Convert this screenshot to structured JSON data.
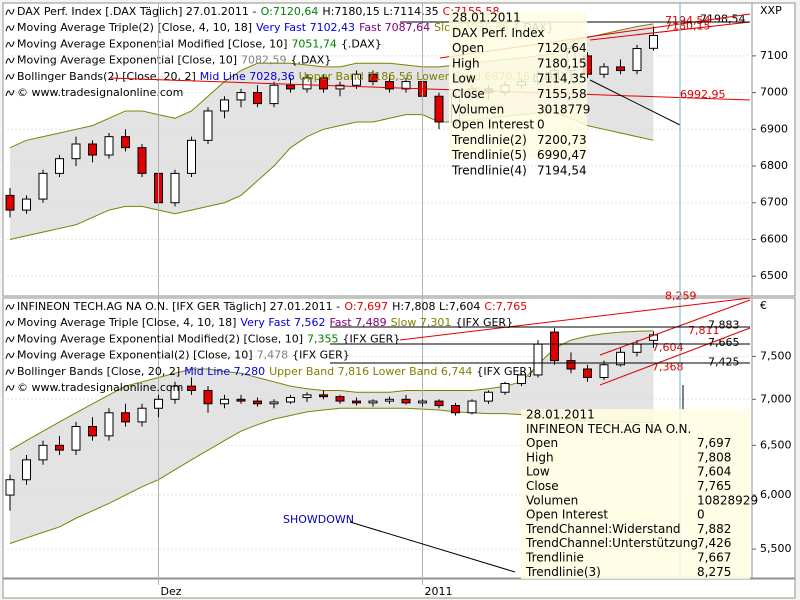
{
  "chart_data": [
    {
      "type": "candlestick",
      "legend": [
        [
          {
            "text": "DAX Perf. Index [.DAX  Täglich] 27.01.2011 -",
            "color": "#000000"
          },
          {
            "text": "O:7120,64",
            "color": "#008000"
          },
          {
            "text": "H:7180,15 L:7114,35",
            "color": "#000000"
          },
          {
            "text": "C:7155,58",
            "color": "#e00000"
          }
        ],
        [
          {
            "text": "Moving Average Triple(2) [Close, 4, 10, 18]",
            "color": "#000000"
          },
          {
            "text": "Very Fast 7102,43",
            "color": "#0000e0"
          },
          {
            "text": "Fast 7087,64",
            "color": "#800080"
          },
          {
            "text": "Slow 7036,85",
            "color": "#808000"
          },
          {
            "text": "{.DAX}",
            "color": "#000000"
          }
        ],
        [
          {
            "text": "Moving Average Exponential Modified [Close, 10]",
            "color": "#000000"
          },
          {
            "text": "7051,74",
            "color": "#008000"
          },
          {
            "text": "{.DAX}",
            "color": "#000000"
          }
        ],
        [
          {
            "text": "Moving Average Exponential [Close, 10]",
            "color": "#000000"
          },
          {
            "text": "7082,59",
            "color": "#808080"
          },
          {
            "text": "{.DAX}",
            "color": "#000000"
          }
        ],
        [
          {
            "text": "Bollinger Bands(2) [Close, 20, 2]",
            "color": "#000000"
          },
          {
            "text": "Mid Line 7028,36",
            "color": "#0000e0"
          },
          {
            "text": "Upper Band 7186,56 Lower Band 6870,16",
            "color": "#808000"
          },
          {
            "text": "{.DAX}",
            "color": "#000000"
          }
        ],
        [
          {
            "text": "© www.tradesignalonline.com",
            "color": "#000000"
          }
        ]
      ],
      "currency": "XXP",
      "ylim": [
        6446,
        7244
      ],
      "yticks": [
        6500,
        6600,
        6700,
        6800,
        6900,
        7000,
        7100
      ],
      "log_scale": false,
      "up_color": "#ffffff",
      "down_color": "#e00000",
      "band_color": "#808000",
      "ohlc": [
        [
          6720,
          6740,
          6660,
          6680
        ],
        [
          6680,
          6720,
          6670,
          6710
        ],
        [
          6710,
          6790,
          6700,
          6780
        ],
        [
          6780,
          6830,
          6770,
          6820
        ],
        [
          6820,
          6880,
          6800,
          6860
        ],
        [
          6860,
          6870,
          6810,
          6830
        ],
        [
          6830,
          6890,
          6820,
          6880
        ],
        [
          6880,
          6900,
          6840,
          6850
        ],
        [
          6850,
          6860,
          6770,
          6780
        ],
        [
          6780,
          6800,
          6660,
          6700
        ],
        [
          6700,
          6790,
          6690,
          6780
        ],
        [
          6780,
          6880,
          6770,
          6870
        ],
        [
          6870,
          6960,
          6860,
          6950
        ],
        [
          6950,
          6990,
          6930,
          6980
        ],
        [
          6980,
          7010,
          6960,
          7000
        ],
        [
          7000,
          7020,
          6960,
          6970
        ],
        [
          6970,
          7030,
          6960,
          7020
        ],
        [
          7020,
          7040,
          7000,
          7010
        ],
        [
          7010,
          7050,
          7000,
          7040
        ],
        [
          7040,
          7050,
          7000,
          7010
        ],
        [
          7010,
          7030,
          6990,
          7020
        ],
        [
          7020,
          7060,
          7010,
          7050
        ],
        [
          7050,
          7060,
          7020,
          7030
        ],
        [
          7030,
          7050,
          7000,
          7010
        ],
        [
          7010,
          7040,
          7000,
          7030
        ],
        [
          7030,
          7040,
          6980,
          6990
        ],
        [
          6990,
          7000,
          6900,
          6920
        ],
        [
          6920,
          7000,
          6910,
          6990
        ],
        [
          6990,
          7020,
          6980,
          7010
        ],
        [
          7010,
          7020,
          6980,
          7000
        ],
        [
          7000,
          7030,
          6990,
          7020
        ],
        [
          7020,
          7040,
          7010,
          7030
        ],
        [
          7030,
          7060,
          7020,
          7050
        ],
        [
          7050,
          7070,
          7040,
          7060
        ],
        [
          7060,
          7130,
          7050,
          7120
        ],
        [
          7100,
          7110,
          7040,
          7050
        ],
        [
          7050,
          7080,
          7040,
          7070
        ],
        [
          7070,
          7090,
          7050,
          7060
        ],
        [
          7060,
          7130,
          7050,
          7120
        ],
        [
          7120.64,
          7180.15,
          7114.35,
          7155.58
        ]
      ],
      "upper_band": [
        6850,
        6870,
        6880,
        6890,
        6900,
        6910,
        6930,
        6950,
        6950,
        6940,
        6930,
        6950,
        6990,
        7030,
        7060,
        7080,
        7080,
        7080,
        7075,
        7070,
        7070,
        7080,
        7080,
        7080,
        7075,
        7070,
        7070,
        7075,
        7080,
        7085,
        7090,
        7095,
        7100,
        7105,
        7140,
        7150,
        7160,
        7170,
        7180,
        7187
      ],
      "lower_band": [
        6600,
        6610,
        6620,
        6630,
        6640,
        6660,
        6680,
        6690,
        6690,
        6680,
        6670,
        6680,
        6690,
        6700,
        6720,
        6760,
        6800,
        6850,
        6880,
        6900,
        6910,
        6920,
        6920,
        6930,
        6940,
        6940,
        6920,
        6920,
        6925,
        6930,
        6935,
        6940,
        6945,
        6945,
        6930,
        6910,
        6900,
        6890,
        6880,
        6870
      ],
      "price_labels": [
        {
          "value": 7198.54,
          "label": "7198,54",
          "color": "#000000"
        },
        {
          "value": 7194.54,
          "label": "7194,54",
          "color": "#e00000"
        },
        {
          "value": 7180.15,
          "label": "7180,15",
          "color": "#e00000"
        },
        {
          "value": 6992.95,
          "label": "6992,95",
          "color": "#e00000"
        }
      ],
      "tooltip": {
        "date": "28.01.2011",
        "name": "DAX Perf. Index",
        "rows": [
          [
            "Open",
            "7120,64"
          ],
          [
            "High",
            "7180,15"
          ],
          [
            "Low",
            "7114,35"
          ],
          [
            "Close",
            "7155,58"
          ],
          [
            "Volumen",
            "3018779"
          ],
          [
            "Open Interest",
            "0"
          ],
          [
            "Trendlinie(2)",
            "7200,73"
          ],
          [
            "Trendlinie(5)",
            "6990,47"
          ],
          [
            "Trendlinie(4)",
            "7194,54"
          ]
        ]
      }
    },
    {
      "type": "candlestick",
      "legend": [
        [
          {
            "text": "INFINEON TECH.AG NA O.N. [IFX GER  Täglich] 27.01.2011 -",
            "color": "#000000"
          },
          {
            "text": "O:7,697",
            "color": "#e00000"
          },
          {
            "text": "H:7,808 L:7,604",
            "color": "#000000"
          },
          {
            "text": "C:7,765",
            "color": "#e00000"
          }
        ],
        [
          {
            "text": "Moving Average Triple [Close, 4, 10, 18]",
            "color": "#000000"
          },
          {
            "text": "Very Fast 7,562",
            "color": "#0000e0"
          },
          {
            "text": "Fast 7,489",
            "color": "#800080"
          },
          {
            "text": "Slow 7,301",
            "color": "#808000"
          },
          {
            "text": "{IFX GER}",
            "color": "#000000"
          }
        ],
        [
          {
            "text": "Moving Average Exponential Modified(2) [Close, 10]",
            "color": "#000000"
          },
          {
            "text": "7,355",
            "color": "#008000"
          },
          {
            "text": "{IFX GER}",
            "color": "#000000"
          }
        ],
        [
          {
            "text": "Moving Average Exponential(2) [Close, 10]",
            "color": "#000000"
          },
          {
            "text": "7,478",
            "color": "#808080"
          },
          {
            "text": "{IFX GER}",
            "color": "#000000"
          }
        ],
        [
          {
            "text": "Bollinger Bands [Close, 20, 2]",
            "color": "#000000"
          },
          {
            "text": "Mid Line 7,280",
            "color": "#0000e0"
          },
          {
            "text": "Upper Band 7,816 Lower Band 6,744",
            "color": "#808000"
          },
          {
            "text": "{IFX GER}",
            "color": "#000000"
          }
        ],
        [
          {
            "text": "© www.tradesignalonline.com",
            "color": "#000000"
          }
        ]
      ],
      "currency": "€",
      "ylim": [
        5.25,
        8.24
      ],
      "yticks": [
        {
          "value": 5.5,
          "label": "5,500"
        },
        {
          "value": 6,
          "label": "6,000"
        },
        {
          "value": 6.5,
          "label": "6,500"
        },
        {
          "value": 7,
          "label": "7,000"
        },
        {
          "value": 7.5,
          "label": "7,500"
        }
      ],
      "log_scale": true,
      "up_color": "#ffffff",
      "down_color": "#e00000",
      "band_color": "#808000",
      "categories": [
        null,
        null,
        null,
        null,
        null,
        null,
        null,
        null,
        null,
        "Dez",
        null,
        null,
        null,
        null,
        null,
        null,
        null,
        null,
        null,
        null,
        null,
        null,
        null,
        null,
        null,
        "2011",
        null,
        null,
        null,
        null,
        null,
        null,
        null,
        null,
        null,
        null,
        null,
        null,
        null,
        null
      ],
      "ohlc": [
        [
          6.0,
          6.2,
          5.85,
          6.15
        ],
        [
          6.15,
          6.4,
          6.1,
          6.35
        ],
        [
          6.35,
          6.55,
          6.3,
          6.5
        ],
        [
          6.5,
          6.6,
          6.4,
          6.45
        ],
        [
          6.45,
          6.75,
          6.4,
          6.7
        ],
        [
          6.7,
          6.8,
          6.55,
          6.6
        ],
        [
          6.6,
          6.9,
          6.55,
          6.85
        ],
        [
          6.85,
          6.95,
          6.7,
          6.75
        ],
        [
          6.75,
          6.95,
          6.7,
          6.9
        ],
        [
          6.9,
          7.05,
          6.8,
          7.0
        ],
        [
          7.0,
          7.2,
          6.95,
          7.15
        ],
        [
          7.15,
          7.25,
          7.05,
          7.1
        ],
        [
          7.1,
          7.15,
          6.85,
          6.95
        ],
        [
          6.95,
          7.05,
          6.9,
          7.0
        ],
        [
          7.0,
          7.05,
          6.95,
          6.98
        ],
        [
          6.98,
          7.02,
          6.92,
          6.95
        ],
        [
          6.95,
          7.0,
          6.9,
          6.97
        ],
        [
          6.97,
          7.05,
          6.95,
          7.02
        ],
        [
          7.02,
          7.08,
          6.97,
          7.05
        ],
        [
          7.05,
          7.1,
          7.0,
          7.03
        ],
        [
          7.03,
          7.05,
          6.95,
          6.98
        ],
        [
          6.98,
          7.02,
          6.93,
          6.96
        ],
        [
          6.96,
          7.0,
          6.92,
          6.98
        ],
        [
          6.98,
          7.03,
          6.95,
          7.0
        ],
        [
          7.0,
          7.05,
          6.94,
          6.96
        ],
        [
          6.96,
          7.0,
          6.92,
          6.98
        ],
        [
          6.98,
          7.0,
          6.9,
          6.93
        ],
        [
          6.93,
          6.96,
          6.82,
          6.85
        ],
        [
          6.85,
          7.0,
          6.83,
          6.98
        ],
        [
          6.98,
          7.1,
          6.95,
          7.08
        ],
        [
          7.08,
          7.2,
          7.05,
          7.18
        ],
        [
          7.18,
          7.3,
          7.15,
          7.28
        ],
        [
          7.28,
          7.7,
          7.25,
          7.65
        ],
        [
          7.8,
          7.85,
          7.4,
          7.45
        ],
        [
          7.45,
          7.55,
          7.3,
          7.35
        ],
        [
          7.35,
          7.4,
          7.2,
          7.25
        ],
        [
          7.25,
          7.45,
          7.22,
          7.4
        ],
        [
          7.4,
          7.6,
          7.38,
          7.55
        ],
        [
          7.55,
          7.7,
          7.5,
          7.65
        ],
        [
          7.697,
          7.808,
          7.604,
          7.765
        ]
      ],
      "upper_band": [
        6.45,
        6.55,
        6.65,
        6.75,
        6.85,
        6.95,
        7.05,
        7.15,
        7.2,
        7.25,
        7.3,
        7.35,
        7.35,
        7.32,
        7.3,
        7.25,
        7.2,
        7.15,
        7.12,
        7.1,
        7.1,
        7.08,
        7.08,
        7.08,
        7.1,
        7.1,
        7.1,
        7.1,
        7.1,
        7.12,
        7.15,
        7.2,
        7.4,
        7.6,
        7.7,
        7.75,
        7.78,
        7.8,
        7.81,
        7.816
      ],
      "lower_band": [
        5.55,
        5.6,
        5.65,
        5.7,
        5.78,
        5.85,
        5.92,
        6.0,
        6.08,
        6.15,
        6.25,
        6.35,
        6.45,
        6.55,
        6.65,
        6.72,
        6.78,
        6.82,
        6.86,
        6.88,
        6.9,
        6.9,
        6.9,
        6.9,
        6.9,
        6.89,
        6.88,
        6.86,
        6.85,
        6.84,
        6.84,
        6.83,
        6.8,
        6.78,
        6.77,
        6.76,
        6.75,
        6.75,
        6.745,
        6.744
      ],
      "price_labels": [
        {
          "value": 8.259,
          "label": "8,259",
          "color": "#e00000"
        },
        {
          "value": 7.883,
          "label": "7,883",
          "color": "#000000"
        },
        {
          "value": 7.811,
          "label": "7,811",
          "color": "#e00000"
        },
        {
          "value": 7.665,
          "label": "7,665",
          "color": "#000000"
        },
        {
          "value": 7.604,
          "label": "7,604",
          "color": "#e00000"
        },
        {
          "value": 7.425,
          "label": "7,425",
          "color": "#000000"
        },
        {
          "value": 7.368,
          "label": "7,368",
          "color": "#e00000"
        }
      ],
      "annotation": "SHOWDOWN",
      "tooltip": {
        "date": "28.01.2011",
        "name": "INFINEON TECH.AG NA O.N.",
        "rows": [
          [
            "Open",
            "7,697"
          ],
          [
            "High",
            "7,808"
          ],
          [
            "Low",
            "7,604"
          ],
          [
            "Close",
            "7,765"
          ],
          [
            "Volumen",
            "10828929"
          ],
          [
            "Open Interest",
            "0"
          ],
          [
            "TrendChannel:Widerstand",
            "7,882"
          ],
          [
            "TrendChannel:Unterstützung",
            "7,426"
          ],
          [
            "Trendlinie",
            "7,667"
          ],
          [
            "Trendlinie(3)",
            "8,275"
          ]
        ]
      }
    }
  ]
}
